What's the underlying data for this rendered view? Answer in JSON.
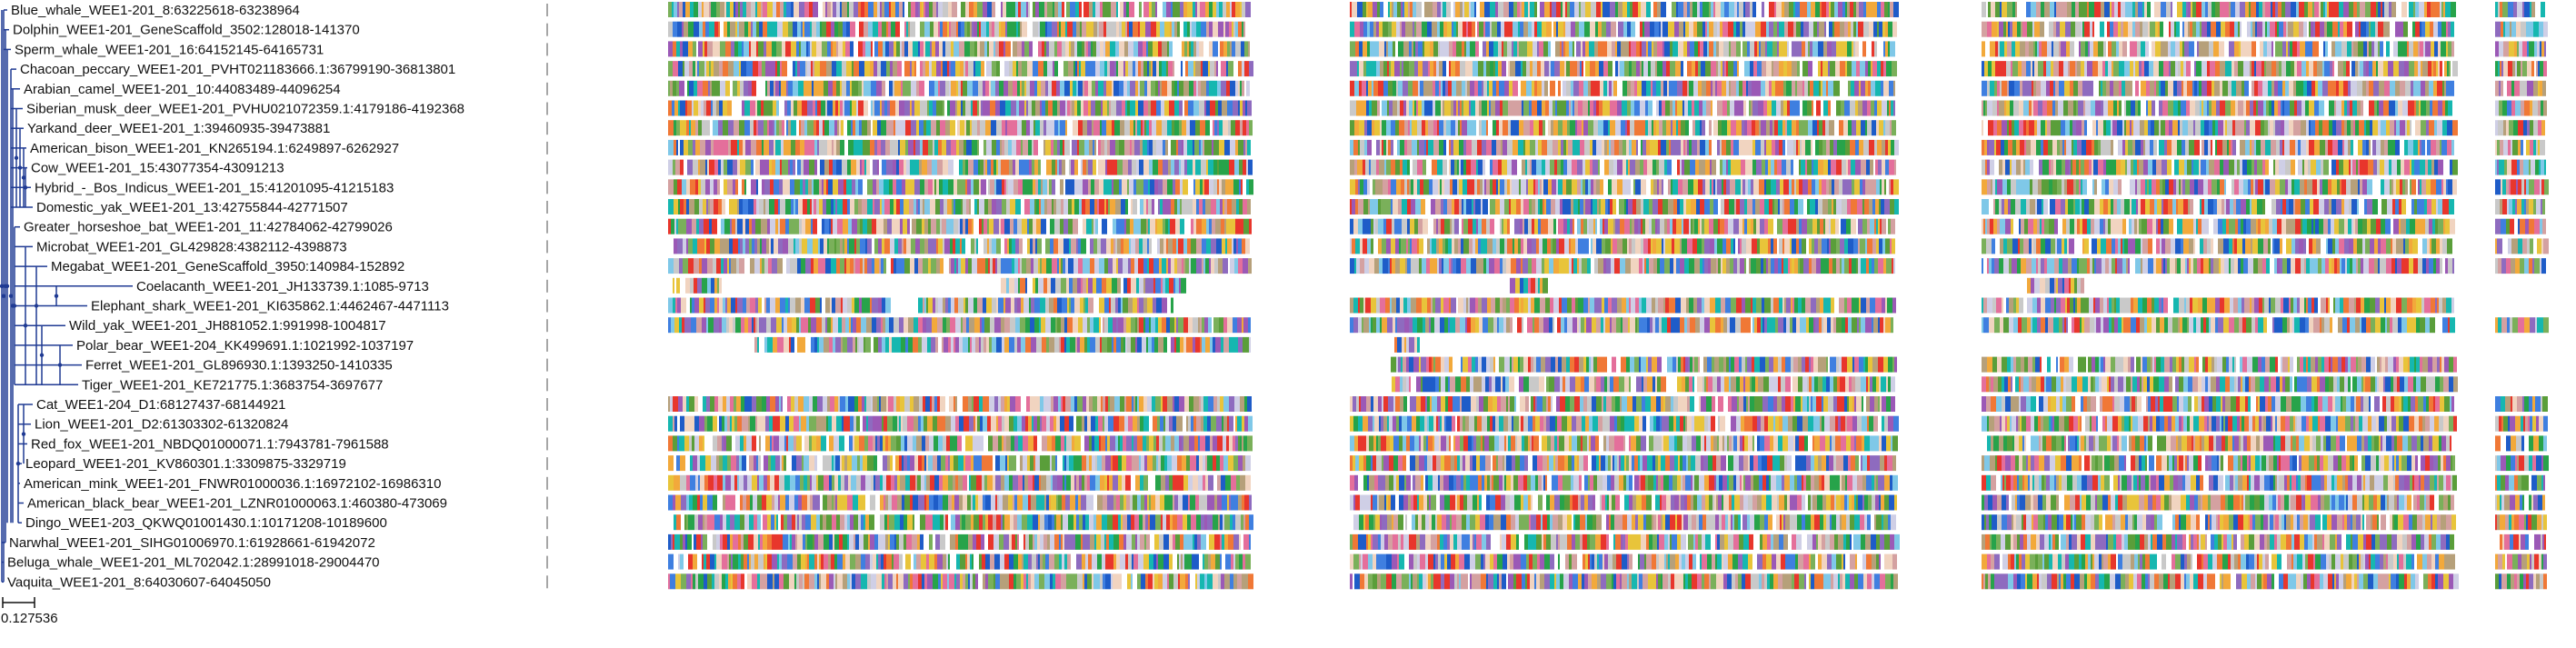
{
  "tree": {
    "taxa": [
      "Blue_whale_WEE1-201_8:63225618-63238964",
      "Dolphin_WEE1-201_GeneScaffold_3502:128018-141370",
      "Sperm_whale_WEE1-201_16:64152145-64165731",
      "Chacoan_peccary_WEE1-201_PVHT021183666.1:36799190-36813801",
      "Arabian_camel_WEE1-201_10:44083489-44096254",
      "Siberian_musk_deer_WEE1-201_PVHU021072359.1:4179186-4192368",
      "Yarkand_deer_WEE1-201_1:39460935-39473881",
      "American_bison_WEE1-201_KN265194.1:6249897-6262927",
      "Cow_WEE1-201_15:43077354-43091213",
      "Hybrid_-_Bos_Indicus_WEE1-201_15:41201095-41215183",
      "Domestic_yak_WEE1-201_13:42755844-42771507",
      "Greater_horseshoe_bat_WEE1-201_11:42784062-42799026",
      "Microbat_WEE1-201_GL429828:4382112-4398873",
      "Megabat_WEE1-201_GeneScaffold_3950:140984-152892",
      "Coelacanth_WEE1-201_JH133739.1:1085-9713",
      "Elephant_shark_WEE1-201_KI635862.1:4462467-4471113",
      "Wild_yak_WEE1-201_JH881052.1:991998-1004817",
      "Polar_bear_WEE1-204_KK499691.1:1021992-1037197",
      "Ferret_WEE1-201_GL896930.1:1393250-1410335",
      "Tiger_WEE1-201_KE721775.1:3683754-3697677",
      "Cat_WEE1-204_D1:68127437-68144921",
      "Lion_WEE1-201_D2:61303302-61320824",
      "Red_fox_WEE1-201_NBDQ01000071.1:7943781-7961588",
      "Leopard_WEE1-201_KV860301.1:3309875-3329719",
      "American_mink_WEE1-201_FNWR01000036.1:16972102-16986310",
      "American_black_bear_WEE1-201_LZNR01000063.1:460380-473069",
      "Dingo_WEE1-203_QKWQ01001430.1:10171208-10189600",
      "Narwhal_WEE1-201_SIHG01006970.1:61928661-61942072",
      "Beluga_whale_WEE1-201_ML702042.1:28991018-29004470",
      "Vaquita_WEE1-201_8:64030607-64045050"
    ],
    "scale_bar_value": "0.127536",
    "branch_color": "#1f3a93"
  },
  "alignment": {
    "palette": [
      "#e8362c",
      "#f2a93b",
      "#3f7fe0",
      "#27a34a",
      "#16b7b0",
      "#b6a07a",
      "#e8c43a",
      "#9b59b6",
      "#d4a1a1",
      "#cfcfe6",
      "#7fc8e8",
      "#7ab05a",
      "#e46f9b",
      "#c9c9c9",
      "#ffffff",
      "#1e5cc8",
      "#f07836",
      "#8e6bbf",
      "#5a9e3a",
      "#f1d4c0"
    ],
    "gap_color": "#ffffff"
  }
}
